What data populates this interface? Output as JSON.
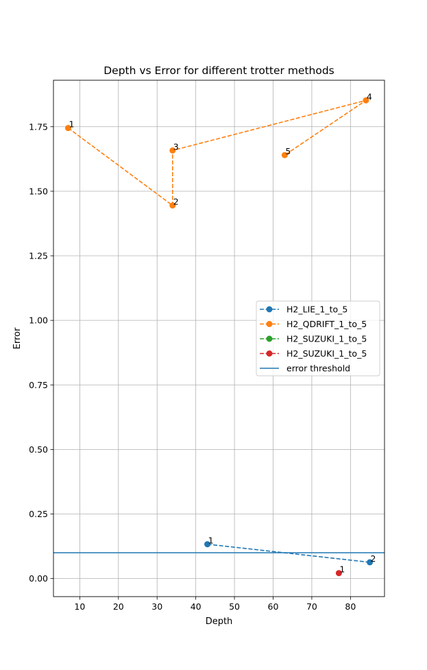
{
  "chart_data": {
    "type": "line",
    "title": "Depth vs Error for different trotter methods",
    "xlabel": "Depth",
    "ylabel": "Error",
    "xlim": [
      3.2,
      88.8
    ],
    "ylim": [
      -0.07,
      1.93
    ],
    "xticks": [
      10,
      20,
      30,
      40,
      50,
      60,
      70,
      80
    ],
    "yticks": [
      0.0,
      0.25,
      0.5,
      0.75,
      1.0,
      1.25,
      1.5,
      1.75
    ],
    "xtick_labels": [
      "10",
      "20",
      "30",
      "40",
      "50",
      "60",
      "70",
      "80"
    ],
    "ytick_labels": [
      "0.00",
      "0.25",
      "0.50",
      "0.75",
      "1.00",
      "1.25",
      "1.50",
      "1.75"
    ],
    "grid": true,
    "legend_position": "center-right",
    "series": [
      {
        "name": "H2_LIE_1_to_5",
        "color": "#1f77b4",
        "style": "dashed-marker",
        "x": [
          43,
          85
        ],
        "y": [
          0.133,
          0.063
        ],
        "point_labels": [
          "1",
          "2"
        ]
      },
      {
        "name": "H2_QDRIFT_1_to_5",
        "color": "#ff7f0e",
        "style": "dashed-marker",
        "x": [
          7,
          34,
          34,
          84,
          63
        ],
        "y": [
          1.745,
          1.445,
          1.658,
          1.852,
          1.64
        ],
        "point_labels": [
          "1",
          "2",
          "3",
          "4",
          "5"
        ]
      },
      {
        "name": "H2_SUZUKI_1_to_5",
        "color": "#2ca02c",
        "style": "dashed-marker",
        "x": [],
        "y": [],
        "point_labels": []
      },
      {
        "name": "H2_SUZUKI_1_to_5",
        "color": "#d62728",
        "style": "dashed-marker",
        "x": [
          77
        ],
        "y": [
          0.021
        ],
        "point_labels": [
          "1"
        ]
      }
    ],
    "reference_lines": [
      {
        "name": "error threshold",
        "color": "#1f77b4",
        "y": 0.1
      }
    ]
  }
}
